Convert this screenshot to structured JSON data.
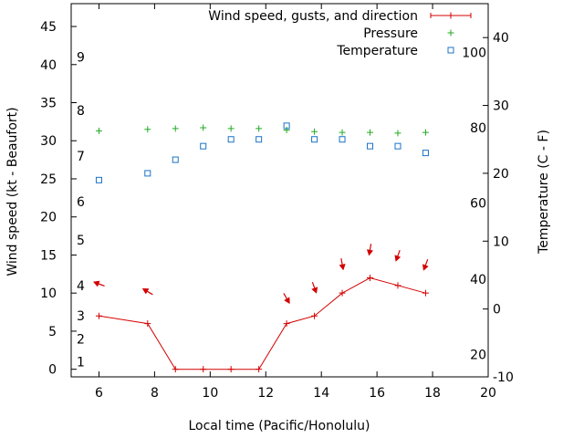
{
  "chart_data": {
    "type": "line",
    "xlabel": "Local time (Pacific/Honolulu)",
    "ylabel": "Wind speed (kt - Beaufort)",
    "y2label": "Temperature (C - F)",
    "xlim": [
      5,
      20
    ],
    "ylim": [
      -1,
      48
    ],
    "y2lim": [
      -10,
      45
    ],
    "x_ticks": [
      6,
      8,
      10,
      12,
      14,
      16,
      18,
      20
    ],
    "y_ticks": [
      0,
      5,
      10,
      15,
      20,
      25,
      30,
      35,
      40,
      45
    ],
    "y2_ticks_c": [
      -10,
      0,
      10,
      20,
      30,
      40
    ],
    "y2_ticks_f": [
      {
        "value_c": -6.7,
        "label": "20"
      },
      {
        "value_c": 4.4,
        "label": "40"
      },
      {
        "value_c": 15.6,
        "label": "60"
      },
      {
        "value_c": 26.7,
        "label": "80"
      },
      {
        "value_c": 37.8,
        "label": "100"
      }
    ],
    "beaufort_labels": [
      {
        "kt": 1,
        "label": "1"
      },
      {
        "kt": 4,
        "label": "2"
      },
      {
        "kt": 7,
        "label": "3"
      },
      {
        "kt": 11,
        "label": "4"
      },
      {
        "kt": 17,
        "label": "5"
      },
      {
        "kt": 22,
        "label": "6"
      },
      {
        "kt": 28,
        "label": "7"
      },
      {
        "kt": 34,
        "label": "8"
      },
      {
        "kt": 41,
        "label": "9"
      }
    ],
    "legend": [
      {
        "name": "Wind speed, gusts, and direction",
        "color": "#d40000",
        "marker": "plus-line"
      },
      {
        "name": "Pressure",
        "color": "#22aa22",
        "marker": "plus"
      },
      {
        "name": "Temperature",
        "color": "#1a73c8",
        "marker": "square"
      }
    ],
    "series": [
      {
        "name": "Wind speed",
        "color": "#d40000",
        "x": [
          6,
          7.75,
          8.75,
          9.75,
          10.75,
          11.75,
          12.75,
          13.75,
          14.75,
          15.75,
          16.75,
          17.75
        ],
        "values": [
          7,
          6,
          0,
          0,
          0,
          0,
          6,
          7,
          10,
          12,
          11,
          10
        ]
      },
      {
        "name": "Wind direction arrows",
        "color": "#d40000",
        "x": [
          6,
          7.75,
          12.75,
          13.75,
          14.75,
          15.75,
          16.75,
          17.75
        ],
        "y_kt": [
          11.2,
          10.2,
          9.3,
          10.7,
          13.8,
          15.7,
          14.9,
          13.7
        ],
        "direction_deg": [
          110,
          120,
          330,
          340,
          350,
          10,
          20,
          20
        ]
      },
      {
        "name": "Pressure",
        "color": "#22aa22",
        "x": [
          6,
          7.75,
          8.75,
          9.75,
          10.75,
          11.75,
          12.75,
          13.75,
          14.75,
          15.75,
          16.75,
          17.75
        ],
        "values_kt_scale": [
          31.3,
          31.5,
          31.6,
          31.7,
          31.6,
          31.6,
          31.4,
          31.2,
          31.1,
          31.1,
          31,
          31.1
        ]
      },
      {
        "name": "Temperature",
        "color": "#1a73c8",
        "x": [
          6,
          7.75,
          8.75,
          9.75,
          10.75,
          11.75,
          12.75,
          13.75,
          14.75,
          15.75,
          16.75,
          17.75
        ],
        "values": [
          19,
          20,
          22,
          24,
          25,
          25,
          27,
          25,
          25,
          24,
          24,
          23
        ]
      }
    ]
  }
}
